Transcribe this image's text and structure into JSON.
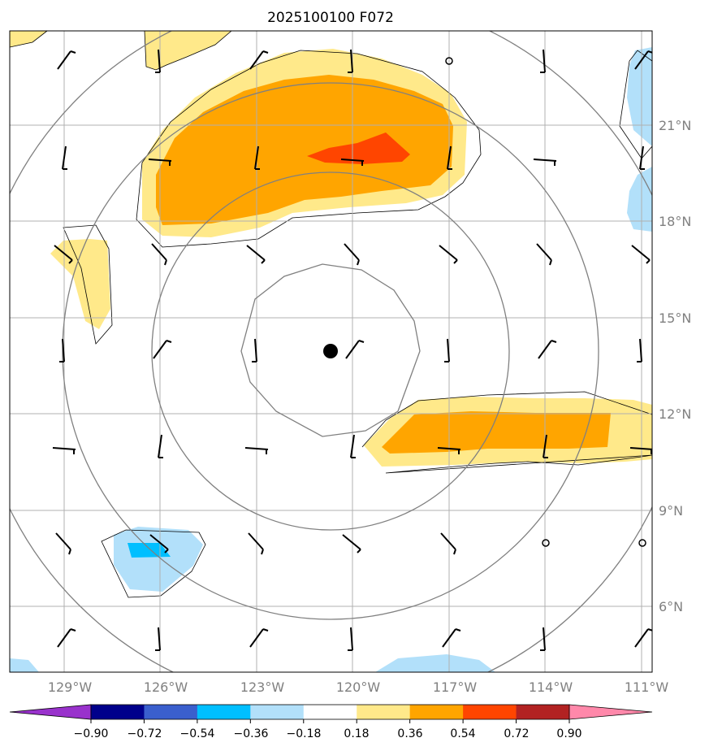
{
  "title": "2025100100 F072",
  "chart_data": {
    "type": "map",
    "lon_ticks": [
      "129°W",
      "126°W",
      "123°W",
      "120°W",
      "117°W",
      "114°W",
      "111°W"
    ],
    "lat_ticks": [
      "21°N",
      "18°N",
      "15°N",
      "12°N",
      "9°N",
      "6°N"
    ],
    "lon_range": [
      -130.7,
      -110.7
    ],
    "lat_range": [
      4.0,
      24.0
    ],
    "grid": true,
    "center_marker": {
      "lon": -120.7,
      "lat": 14.0
    },
    "colorbar": {
      "ticks": [
        "−0.90",
        "−0.72",
        "−0.54",
        "−0.36",
        "−0.18",
        "0.18",
        "0.36",
        "0.54",
        "0.72",
        "0.90"
      ],
      "colors": [
        "#9932cc",
        "#00008b",
        "#3a5fcd",
        "#00bfff",
        "#b2e0fa",
        "#ffffff",
        "#ffe98a",
        "#ffa500",
        "#ff4500",
        "#b22222",
        "#ff88aa"
      ]
    },
    "colors": {
      "pos1": "#ffe98a",
      "pos2": "#ffa500",
      "pos3": "#ff4500",
      "neg1": "#b2e0fa",
      "neg2": "#00bfff",
      "grid": "#b0b0b0",
      "ring": "#808080"
    }
  }
}
